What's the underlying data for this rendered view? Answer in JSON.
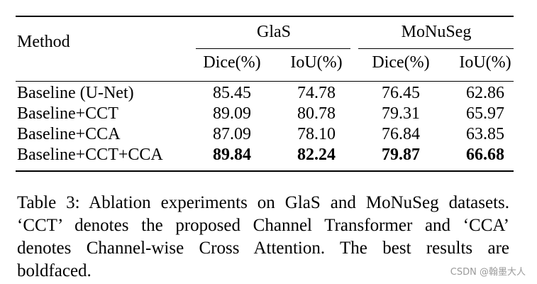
{
  "table": {
    "method_header": "Method",
    "groups": [
      {
        "name": "GlaS"
      },
      {
        "name": "MoNuSeg"
      }
    ],
    "sub_headers": [
      "Dice(%)",
      "IoU(%)",
      "Dice(%)",
      "IoU(%)"
    ],
    "rows": [
      {
        "method": "Baseline (U-Net)",
        "values": [
          "85.45",
          "74.78",
          "76.45",
          "62.86"
        ],
        "bold": false
      },
      {
        "method": "Baseline+CCT",
        "values": [
          "89.09",
          "80.78",
          "79.31",
          "65.97"
        ],
        "bold": false
      },
      {
        "method": "Baseline+CCA",
        "values": [
          "87.09",
          "78.10",
          "76.84",
          "63.85"
        ],
        "bold": false
      },
      {
        "method": "Baseline+CCT+CCA",
        "values": [
          "89.84",
          "82.24",
          "79.87",
          "66.68"
        ],
        "bold": true
      }
    ]
  },
  "caption": "Table 3: Ablation experiments on GlaS and MoNuSeg datasets. ‘CCT’ denotes the proposed Channel Transformer and ‘CCA’ denotes Channel-wise Cross Attention. The best results are boldfaced.",
  "watermark": "CSDN @翰墨大人"
}
